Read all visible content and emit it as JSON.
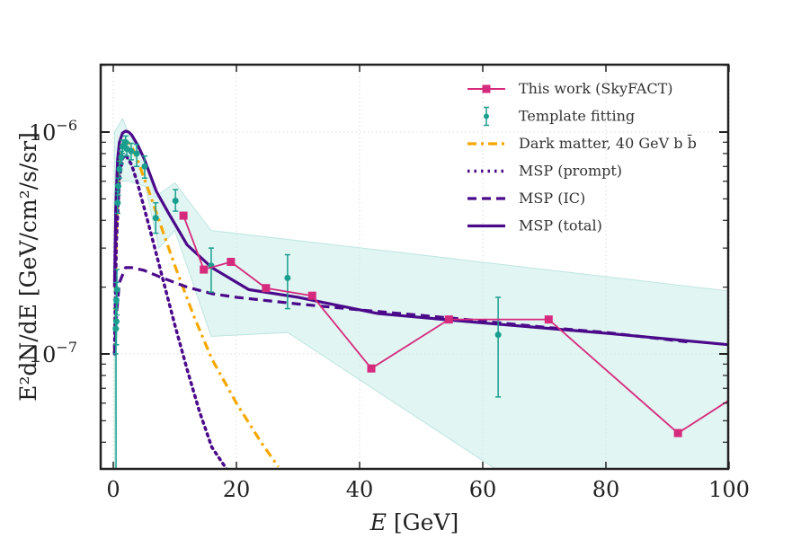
{
  "chart_data": {
    "type": "line",
    "xlabel": "E [GeV]",
    "ylabel": "E²dN/dE [GeV/cm²/s/sr]",
    "xlim": [
      -1,
      100
    ],
    "ylim": [
      3e-08,
      2e-06
    ],
    "yscale": "log",
    "grid": true,
    "legend_position": "top-right",
    "x_ticks": [
      0,
      20,
      40,
      60,
      80,
      100
    ],
    "x_tick_labels": [
      "0",
      "20",
      "40",
      "60",
      "80",
      "100"
    ],
    "y_ticks": [
      1e-06,
      1e-07
    ],
    "y_tick_labels": [
      {
        "base": "10",
        "exp": "−6"
      },
      {
        "base": "10",
        "exp": "−7"
      }
    ],
    "colors": {
      "skyfact": "#d62a7d",
      "template": "#1a9e8f",
      "band": "#cdeeea",
      "dm": "#f6a800",
      "msp": "#4b0a8a"
    },
    "band": {
      "name": "Template fitting uncertainty",
      "upper": [
        [
          0.2,
          1e-06
        ],
        [
          1.5,
          1.15e-06
        ],
        [
          2.8,
          9.5e-07
        ],
        [
          5.2,
          7.5e-07
        ],
        [
          6.8,
          5.1e-07
        ],
        [
          10.0,
          5.9e-07
        ],
        [
          15.9,
          3.6e-07
        ],
        [
          45,
          2.9e-07
        ],
        [
          100,
          1.92e-07
        ]
      ],
      "lower": [
        [
          0.2,
          3e-08
        ],
        [
          0.6,
          6e-07
        ],
        [
          2.5,
          6e-07
        ],
        [
          5.2,
          5.7e-07
        ],
        [
          7.4,
          3e-07
        ],
        [
          10.0,
          3.6e-07
        ],
        [
          15.9,
          1.2e-07
        ],
        [
          28.3,
          1.25e-07
        ],
        [
          62.3,
          3e-08
        ]
      ]
    },
    "series": [
      {
        "name": "This work (SkyFACT)",
        "style": "line-square",
        "x": [
          11.4,
          14.7,
          19.1,
          24.8,
          32.3,
          41.9,
          54.5,
          70.7,
          91.7,
          105
        ],
        "y": [
          4.2e-07,
          2.4e-07,
          2.6e-07,
          1.98e-07,
          1.83e-07,
          8.6e-08,
          1.43e-07,
          1.43e-07,
          4.4e-08,
          7.6e-08
        ]
      },
      {
        "name": "Template fitting",
        "style": "errorbar",
        "x": [
          0.4,
          0.5,
          0.5,
          0.6,
          0.7,
          0.8,
          1.0,
          1.3,
          1.5,
          2.0,
          2.2,
          2.9,
          3.8,
          5.1,
          6.9,
          10.1,
          15.9,
          28.3,
          62.5
        ],
        "y": [
          1.3e-07,
          1.4e-07,
          1.75e-07,
          1.95e-07,
          4.8e-07,
          5.7e-07,
          6.8e-07,
          7.7e-07,
          8.6e-07,
          9e-07,
          8.4e-07,
          8.2e-07,
          8e-07,
          7e-07,
          4.1e-07,
          4.9e-07,
          2.5e-07,
          2.2e-07,
          1.22e-07
        ],
        "yerr_low": [
          1e-07,
          1.1e-07,
          1.3e-07,
          1.5e-07,
          4.3e-07,
          5.2e-07,
          6.2e-07,
          7.2e-07,
          8e-07,
          8.4e-07,
          7.8e-07,
          7.5e-07,
          7e-07,
          6.2e-07,
          3.5e-07,
          4.4e-07,
          1.9e-07,
          1.6e-07,
          6.4e-08
        ],
        "yerr_high": [
          1.6e-07,
          1.7e-07,
          2.1e-07,
          2.4e-07,
          5.4e-07,
          6.2e-07,
          7.4e-07,
          8.2e-07,
          9.2e-07,
          9.6e-07,
          9e-07,
          8.9e-07,
          8.8e-07,
          7.8e-07,
          4.8e-07,
          5.5e-07,
          3e-07,
          2.8e-07,
          1.8e-07
        ]
      },
      {
        "name": "Dark matter, 40 GeV b b̄",
        "style": "dashdot",
        "x": [
          0.2,
          0.5,
          1.0,
          1.5,
          2.0,
          3.0,
          4.0,
          6.0,
          8.0,
          10.0,
          13.0,
          16.0,
          20.0,
          24.0,
          26.8
        ],
        "y": [
          1e-07,
          3.5e-07,
          7e-07,
          8.8e-07,
          9.3e-07,
          8.6e-07,
          7.4e-07,
          5.2e-07,
          3.6e-07,
          2.5e-07,
          1.5e-07,
          9.5e-08,
          6e-08,
          4e-08,
          3.1e-08
        ]
      },
      {
        "name": "MSP (prompt)",
        "style": "dotted",
        "x": [
          0.2,
          0.5,
          1.0,
          1.5,
          2.0,
          3.0,
          4.0,
          6.0,
          8.0,
          10.0,
          12.0,
          14.0,
          16.0,
          18.5
        ],
        "y": [
          1e-07,
          3.2e-07,
          6.2e-07,
          7.6e-07,
          7.9e-07,
          7.1e-07,
          5.8e-07,
          3.6e-07,
          2.2e-07,
          1.35e-07,
          8.5e-08,
          5.5e-08,
          3.8e-08,
          3e-08
        ]
      },
      {
        "name": "MSP (IC)",
        "style": "dashed",
        "x": [
          0.2,
          0.6,
          1.0,
          2.0,
          3.0,
          5.0,
          8.0,
          12.0,
          16.0,
          20.0,
          30.0,
          40.0,
          55.0,
          70.0,
          80.0,
          93.6
        ],
        "y": [
          1e-07,
          1.6e-07,
          2.1e-07,
          2.45e-07,
          2.45e-07,
          2.38e-07,
          2.2e-07,
          2e-07,
          1.87e-07,
          1.8e-07,
          1.68e-07,
          1.58e-07,
          1.45e-07,
          1.32e-07,
          1.25e-07,
          1.13e-07
        ]
      },
      {
        "name": "MSP (total)",
        "style": "solid",
        "x": [
          0.2,
          0.4,
          0.7,
          1.0,
          1.5,
          2.0,
          2.5,
          3.0,
          4.0,
          5.0,
          7.0,
          9.0,
          12.0,
          16.0,
          22.0,
          30.0,
          43.0,
          60.0,
          80.0,
          100.0
        ],
        "y": [
          2e-07,
          4.5e-07,
          7.5e-07,
          9e-07,
          9.9e-07,
          1.01e-06,
          1e-06,
          9.7e-07,
          8.7e-07,
          7.6e-07,
          5.4e-07,
          4.3e-07,
          3.1e-07,
          2.45e-07,
          1.95e-07,
          1.8e-07,
          1.52e-07,
          1.38e-07,
          1.24e-07,
          1.1e-07
        ]
      }
    ]
  }
}
